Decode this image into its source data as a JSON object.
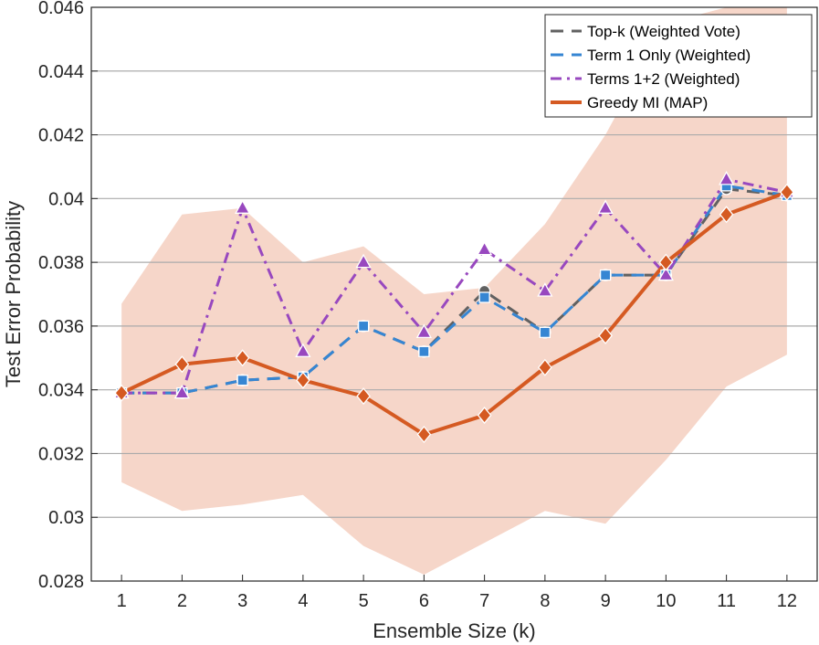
{
  "chart_data": {
    "type": "line",
    "xlabel": "Ensemble Size (k)",
    "ylabel": "Test Error Probability",
    "xlim": [
      0.5,
      12.5
    ],
    "ylim": [
      0.028,
      0.046
    ],
    "x": [
      1,
      2,
      3,
      4,
      5,
      6,
      7,
      8,
      9,
      10,
      11,
      12
    ],
    "x_ticks": [
      "1",
      "2",
      "3",
      "4",
      "5",
      "6",
      "7",
      "8",
      "9",
      "10",
      "11",
      "12"
    ],
    "y_ticks": [
      {
        "value": 0.028,
        "label": "0.028"
      },
      {
        "value": 0.03,
        "label": "0.03"
      },
      {
        "value": 0.032,
        "label": "0.032"
      },
      {
        "value": 0.034,
        "label": "0.034"
      },
      {
        "value": 0.036,
        "label": "0.036"
      },
      {
        "value": 0.038,
        "label": "0.038"
      },
      {
        "value": 0.04,
        "label": "0.04"
      },
      {
        "value": 0.042,
        "label": "0.042"
      },
      {
        "value": 0.044,
        "label": "0.044"
      },
      {
        "value": 0.046,
        "label": "0.046"
      }
    ],
    "grid": "horizontal",
    "legend_position": "top-right",
    "band": {
      "color": "#f5cfc0",
      "upper": [
        0.0367,
        0.0395,
        0.0397,
        0.038,
        0.0385,
        0.037,
        0.0372,
        0.0392,
        0.042,
        0.0455,
        0.046,
        0.046
      ],
      "lower": [
        0.0311,
        0.0302,
        0.0304,
        0.0307,
        0.0291,
        0.0282,
        0.0292,
        0.0302,
        0.0298,
        0.0318,
        0.0341,
        0.0351
      ]
    },
    "series": [
      {
        "name": "Top-k (Weighted Vote)",
        "color": "#616161",
        "dash": "14,9",
        "marker": "circle",
        "values": [
          0.0339,
          0.0339,
          0.0343,
          0.0344,
          0.036,
          0.0352,
          0.0371,
          0.0358,
          0.0376,
          0.0376,
          0.0403,
          0.0401
        ]
      },
      {
        "name": "Term 1 Only (Weighted)",
        "color": "#3686d3",
        "dash": "14,9",
        "marker": "square",
        "values": [
          0.0339,
          0.0339,
          0.0343,
          0.0344,
          0.036,
          0.0352,
          0.0369,
          0.0358,
          0.0376,
          0.0376,
          0.0404,
          0.0401
        ]
      },
      {
        "name": "Terms 1+2 (Weighted)",
        "color": "#9848bf",
        "dash": "12,6,3,6",
        "marker": "triangle",
        "values": [
          0.0339,
          0.0339,
          0.0397,
          0.0352,
          0.038,
          0.0358,
          0.0384,
          0.0371,
          0.0397,
          0.0376,
          0.0406,
          0.0402
        ]
      },
      {
        "name": "Greedy MI (MAP)",
        "color": "#d55a22",
        "dash": "",
        "marker": "diamond",
        "values": [
          0.0339,
          0.0348,
          0.035,
          0.0343,
          0.0338,
          0.0326,
          0.0332,
          0.0347,
          0.0357,
          0.038,
          0.0395,
          0.0402
        ]
      }
    ]
  }
}
